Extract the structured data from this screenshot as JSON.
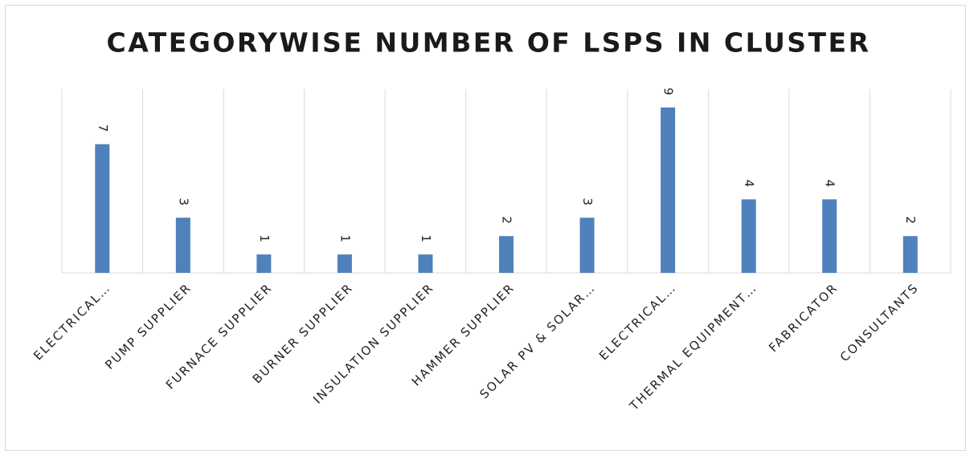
{
  "chart_data": {
    "type": "bar",
    "title": "CATEGORYWISE NUMBER OF LSPS IN CLUSTER",
    "categories": [
      "ELECTRICAL…",
      "PUMP SUPPLIER",
      "FURNACE SUPPLIER",
      "BURNER SUPPLIER",
      "INSULATION SUPPLIER",
      "HAMMER SUPPLIER",
      "SOLAR PV & SOLAR…",
      "ELECTRICAL…",
      "THERMAL EQUIPMENT…",
      "FABRICATOR",
      "CONSULTANTS"
    ],
    "values": [
      7,
      3,
      1,
      1,
      1,
      2,
      3,
      9,
      4,
      4,
      2
    ],
    "color": "#4f81bd",
    "ylim": [
      0,
      10
    ]
  }
}
